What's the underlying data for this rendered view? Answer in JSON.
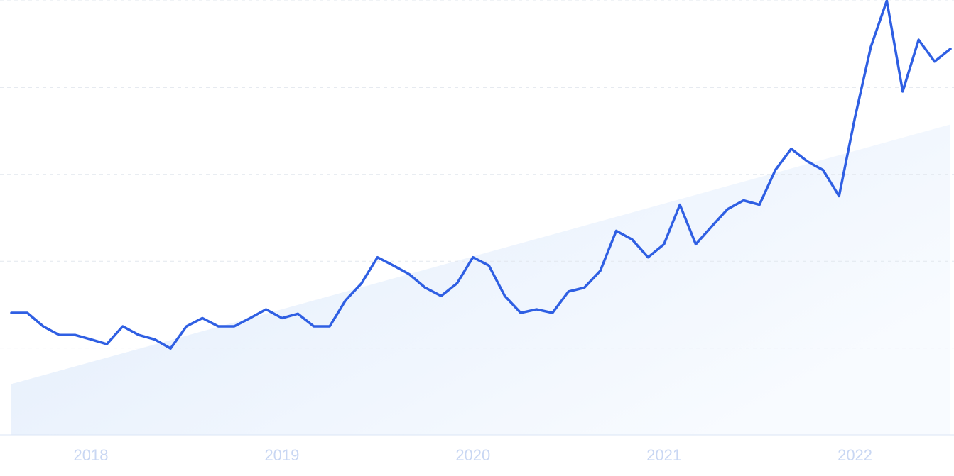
{
  "chart_data": {
    "type": "line",
    "categories": [
      null,
      null,
      null,
      null,
      null,
      "2018",
      null,
      null,
      null,
      null,
      null,
      null,
      null,
      null,
      null,
      null,
      null,
      "2019",
      null,
      null,
      null,
      null,
      null,
      null,
      null,
      null,
      null,
      null,
      null,
      "2020",
      null,
      null,
      null,
      null,
      null,
      null,
      null,
      null,
      null,
      null,
      null,
      "2021",
      null,
      null,
      null,
      null,
      null,
      null,
      null,
      null,
      null,
      null,
      null,
      "2022",
      null,
      null,
      null,
      null,
      null,
      null
    ],
    "values": [
      28.1,
      28.1,
      25.0,
      23.0,
      23.0,
      22.0,
      20.9,
      25.0,
      23.0,
      22.0,
      19.9,
      25.0,
      26.9,
      25.0,
      25.0,
      26.9,
      28.9,
      26.9,
      27.9,
      25.0,
      25.0,
      31.0,
      34.9,
      40.9,
      39.0,
      37.0,
      33.9,
      32.0,
      34.9,
      40.9,
      39.0,
      32.0,
      28.1,
      28.9,
      28.1,
      33.0,
      33.9,
      37.8,
      47.0,
      45.0,
      40.9,
      43.9,
      53.0,
      43.9,
      48.0,
      52.0,
      54.0,
      53.0,
      61.0,
      65.9,
      63.0,
      61.0,
      55.0,
      73.1,
      89.4,
      100,
      79.1,
      91.0,
      86.0,
      88.9
    ],
    "color": "#2f5fe3",
    "trend": [
      11.7,
      71.5
    ],
    "ylim": [
      0,
      100
    ],
    "yticks": [
      0,
      20,
      40,
      60,
      80,
      100
    ],
    "grid": true
  }
}
